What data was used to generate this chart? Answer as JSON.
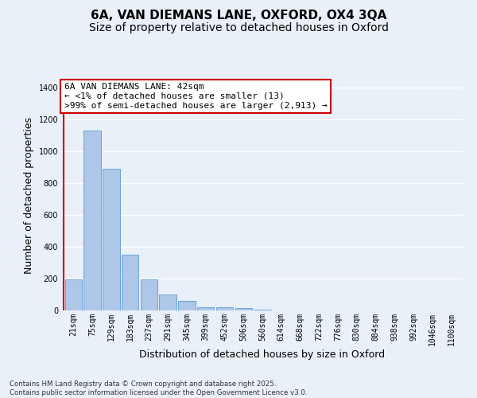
{
  "title_line1": "6A, VAN DIEMANS LANE, OXFORD, OX4 3QA",
  "title_line2": "Size of property relative to detached houses in Oxford",
  "xlabel": "Distribution of detached houses by size in Oxford",
  "ylabel": "Number of detached properties",
  "categories": [
    "21sqm",
    "75sqm",
    "129sqm",
    "183sqm",
    "237sqm",
    "291sqm",
    "345sqm",
    "399sqm",
    "452sqm",
    "506sqm",
    "560sqm",
    "614sqm",
    "668sqm",
    "722sqm",
    "776sqm",
    "830sqm",
    "884sqm",
    "938sqm",
    "992sqm",
    "1046sqm",
    "1100sqm"
  ],
  "values": [
    195,
    1130,
    890,
    350,
    195,
    100,
    62,
    20,
    20,
    13,
    5,
    2,
    1,
    0,
    0,
    0,
    0,
    0,
    0,
    0,
    0
  ],
  "bar_color": "#aec6e8",
  "bar_edge_color": "#5a9bd5",
  "annotation_text": "6A VAN DIEMANS LANE: 42sqm\n← <1% of detached houses are smaller (13)\n>99% of semi-detached houses are larger (2,913) →",
  "annotation_box_color": "#ffffff",
  "annotation_border_color": "#cc0000",
  "vline_color": "#cc0000",
  "ylim": [
    0,
    1450
  ],
  "yticks": [
    0,
    200,
    400,
    600,
    800,
    1000,
    1200,
    1400
  ],
  "bg_color": "#eaf0f8",
  "grid_color": "#ffffff",
  "footer_text": "Contains HM Land Registry data © Crown copyright and database right 2025.\nContains public sector information licensed under the Open Government Licence v3.0.",
  "title_fontsize": 11,
  "subtitle_fontsize": 10,
  "tick_fontsize": 7,
  "ylabel_fontsize": 9,
  "xlabel_fontsize": 9,
  "annotation_fontsize": 8
}
